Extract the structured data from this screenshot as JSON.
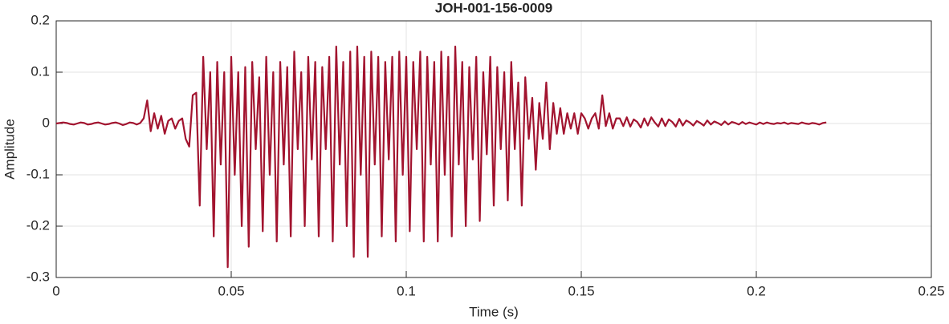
{
  "chart_data": {
    "type": "line",
    "title": "JOH-001-156-0009",
    "xlabel": "Time (s)",
    "ylabel": "Amplitude",
    "x": [
      0,
      0.001,
      0.002,
      0.003,
      0.004,
      0.005,
      0.006,
      0.007,
      0.008,
      0.009,
      0.01,
      0.011,
      0.012,
      0.013,
      0.014,
      0.015,
      0.016,
      0.017,
      0.018,
      0.019,
      0.02,
      0.021,
      0.022,
      0.023,
      0.024,
      0.025,
      0.026,
      0.027,
      0.028,
      0.029,
      0.03,
      0.031,
      0.032,
      0.033,
      0.034,
      0.035,
      0.036,
      0.037,
      0.038,
      0.039,
      0.04,
      0.041,
      0.042,
      0.043,
      0.044,
      0.045,
      0.046,
      0.047,
      0.048,
      0.049,
      0.05,
      0.051,
      0.052,
      0.053,
      0.054,
      0.055,
      0.056,
      0.057,
      0.058,
      0.059,
      0.06,
      0.061,
      0.062,
      0.063,
      0.064,
      0.065,
      0.066,
      0.067,
      0.068,
      0.069,
      0.07,
      0.071,
      0.072,
      0.073,
      0.074,
      0.075,
      0.076,
      0.077,
      0.078,
      0.079,
      0.08,
      0.081,
      0.082,
      0.083,
      0.084,
      0.085,
      0.086,
      0.087,
      0.088,
      0.089,
      0.09,
      0.091,
      0.092,
      0.093,
      0.094,
      0.095,
      0.096,
      0.097,
      0.098,
      0.099,
      0.1,
      0.101,
      0.102,
      0.103,
      0.104,
      0.105,
      0.106,
      0.107,
      0.108,
      0.109,
      0.11,
      0.111,
      0.112,
      0.113,
      0.114,
      0.115,
      0.116,
      0.117,
      0.118,
      0.119,
      0.12,
      0.121,
      0.122,
      0.123,
      0.124,
      0.125,
      0.126,
      0.127,
      0.128,
      0.129,
      0.13,
      0.131,
      0.132,
      0.133,
      0.134,
      0.135,
      0.136,
      0.137,
      0.138,
      0.139,
      0.14,
      0.141,
      0.142,
      0.143,
      0.144,
      0.145,
      0.146,
      0.147,
      0.148,
      0.149,
      0.15,
      0.151,
      0.152,
      0.153,
      0.154,
      0.155,
      0.156,
      0.157,
      0.158,
      0.159,
      0.16,
      0.161,
      0.162,
      0.163,
      0.164,
      0.165,
      0.166,
      0.167,
      0.168,
      0.169,
      0.17,
      0.171,
      0.172,
      0.173,
      0.174,
      0.175,
      0.176,
      0.177,
      0.178,
      0.179,
      0.18,
      0.181,
      0.182,
      0.183,
      0.184,
      0.185,
      0.186,
      0.187,
      0.188,
      0.189,
      0.19,
      0.191,
      0.192,
      0.193,
      0.194,
      0.195,
      0.196,
      0.197,
      0.198,
      0.199,
      0.2,
      0.201,
      0.202,
      0.203,
      0.204,
      0.205,
      0.206,
      0.207,
      0.208,
      0.209,
      0.21,
      0.211,
      0.212,
      0.213,
      0.214,
      0.215,
      0.216,
      0.217,
      0.218,
      0.219,
      0.22
    ],
    "series": [
      {
        "name": "JOH-001-156-0009",
        "color": "#a2142f",
        "values": [
          0,
          0.001,
          0.002,
          0.001,
          -0.001,
          -0.002,
          0,
          0.002,
          0.001,
          -0.002,
          -0.001,
          0.001,
          0.002,
          0,
          -0.002,
          -0.001,
          0.001,
          0.002,
          0,
          -0.003,
          -0.001,
          0.002,
          0.001,
          -0.002,
          0.001,
          0.01,
          0.045,
          -0.015,
          0.02,
          -0.01,
          0.015,
          -0.02,
          0.005,
          0.01,
          -0.01,
          0.005,
          0.01,
          -0.03,
          -0.045,
          0.055,
          0.06,
          -0.16,
          0.13,
          -0.05,
          0.1,
          -0.22,
          0.12,
          -0.08,
          0.1,
          -0.28,
          0.13,
          -0.1,
          0.1,
          -0.2,
          0.11,
          -0.24,
          0.12,
          -0.05,
          0.09,
          -0.21,
          0.13,
          -0.1,
          0.1,
          -0.23,
          0.12,
          -0.08,
          0.11,
          -0.22,
          0.14,
          -0.05,
          0.1,
          -0.2,
          0.13,
          -0.07,
          0.12,
          -0.22,
          0.11,
          -0.05,
          0.13,
          -0.23,
          0.15,
          -0.08,
          0.12,
          -0.2,
          0.14,
          -0.26,
          0.15,
          -0.1,
          0.13,
          -0.26,
          0.14,
          -0.08,
          0.13,
          -0.22,
          0.12,
          -0.07,
          0.13,
          -0.23,
          0.14,
          -0.1,
          0.13,
          -0.21,
          0.12,
          -0.05,
          0.14,
          -0.23,
          0.13,
          -0.08,
          0.12,
          -0.23,
          0.14,
          -0.1,
          0.13,
          -0.22,
          0.15,
          -0.08,
          0.12,
          -0.2,
          0.11,
          -0.07,
          0.13,
          -0.19,
          0.1,
          -0.06,
          0.13,
          -0.16,
          0.11,
          -0.05,
          0.1,
          -0.15,
          0.12,
          -0.05,
          0.08,
          -0.16,
          0.09,
          -0.03,
          0.05,
          -0.09,
          0.04,
          -0.03,
          0.08,
          -0.05,
          0.04,
          -0.02,
          0.03,
          -0.02,
          0.02,
          -0.01,
          0.02,
          -0.02,
          0.02,
          0.01,
          -0.01,
          0.01,
          0.02,
          -0.01,
          0.055,
          -0.005,
          0.02,
          -0.01,
          0.01,
          0.01,
          -0.005,
          0.012,
          -0.006,
          0.008,
          0.003,
          -0.008,
          0.01,
          -0.004,
          0.012,
          0.002,
          -0.006,
          0.01,
          -0.005,
          0.008,
          0.003,
          -0.006,
          0.009,
          -0.004,
          0.006,
          0.002,
          -0.004,
          0.005,
          0.001,
          -0.004,
          0.006,
          -0.002,
          0.004,
          0.001,
          -0.003,
          0.004,
          -0.002,
          0.003,
          0.001,
          -0.002,
          0.003,
          -0.001,
          0.002,
          0,
          -0.002,
          0.002,
          -0.001,
          0.002,
          0,
          -0.001,
          0.001,
          0,
          0.002,
          -0.001,
          0.001,
          0,
          -0.001,
          0.002,
          0,
          -0.001,
          0.001,
          0,
          -0.002,
          0.001,
          0.002
        ]
      }
    ],
    "xlim": [
      0,
      0.25
    ],
    "xticks": [
      0,
      0.05,
      0.1,
      0.15,
      0.2,
      0.25
    ],
    "ylim": [
      -0.3,
      0.2
    ],
    "yticks": [
      -0.3,
      -0.2,
      -0.1,
      0,
      0.1,
      0.2
    ],
    "grid": true
  }
}
